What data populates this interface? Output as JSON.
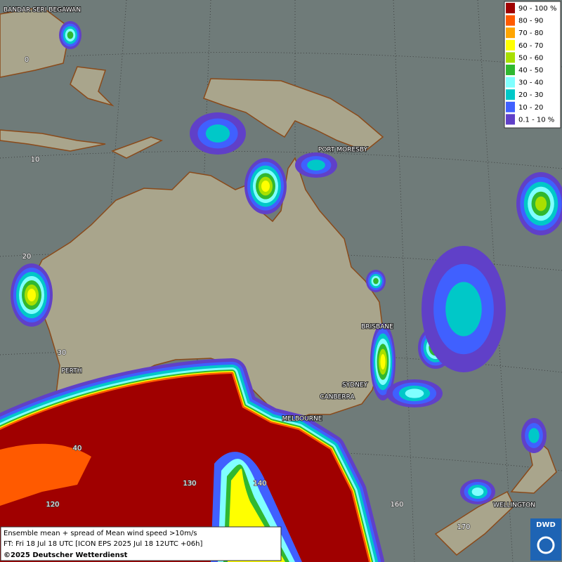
{
  "map_labels": {
    "cities": [
      "BANDAR SERI BEGAWAN",
      "PORT MORESBY",
      "BRISBANE",
      "SYDNEY",
      "CANBERRA",
      "MELBOURNE",
      "PERTH",
      "WELLINGTON"
    ],
    "latitudes": [
      "0",
      "10",
      "20",
      "30",
      "40"
    ],
    "longitudes": [
      "120",
      "130",
      "140",
      "160",
      "170"
    ]
  },
  "legend": {
    "items": [
      {
        "label": "90 - 100 %",
        "color": "#a00000"
      },
      {
        "label": "80 - 90",
        "color": "#ff5a00"
      },
      {
        "label": "70 - 80",
        "color": "#ffa500"
      },
      {
        "label": "60 - 70",
        "color": "#ffff00"
      },
      {
        "label": "50 - 60",
        "color": "#a8e000"
      },
      {
        "label": "40 - 50",
        "color": "#30b830"
      },
      {
        "label": "30 - 40",
        "color": "#80ffff"
      },
      {
        "label": "20 - 30",
        "color": "#00c8c8"
      },
      {
        "label": "10 - 20",
        "color": "#4060ff"
      },
      {
        "label": "0.1 - 10 %",
        "color": "#6040c8"
      }
    ]
  },
  "footer": {
    "lines": [
      "Ensemble mean + spread of Mean wind speed >10m/s",
      "FT: Fri 18 Jul 18 UTC [ICON EPS 2025 Jul 18 12UTC +06h]",
      "©2025 Deutscher Wetterdienst"
    ]
  },
  "logo": "DWD"
}
